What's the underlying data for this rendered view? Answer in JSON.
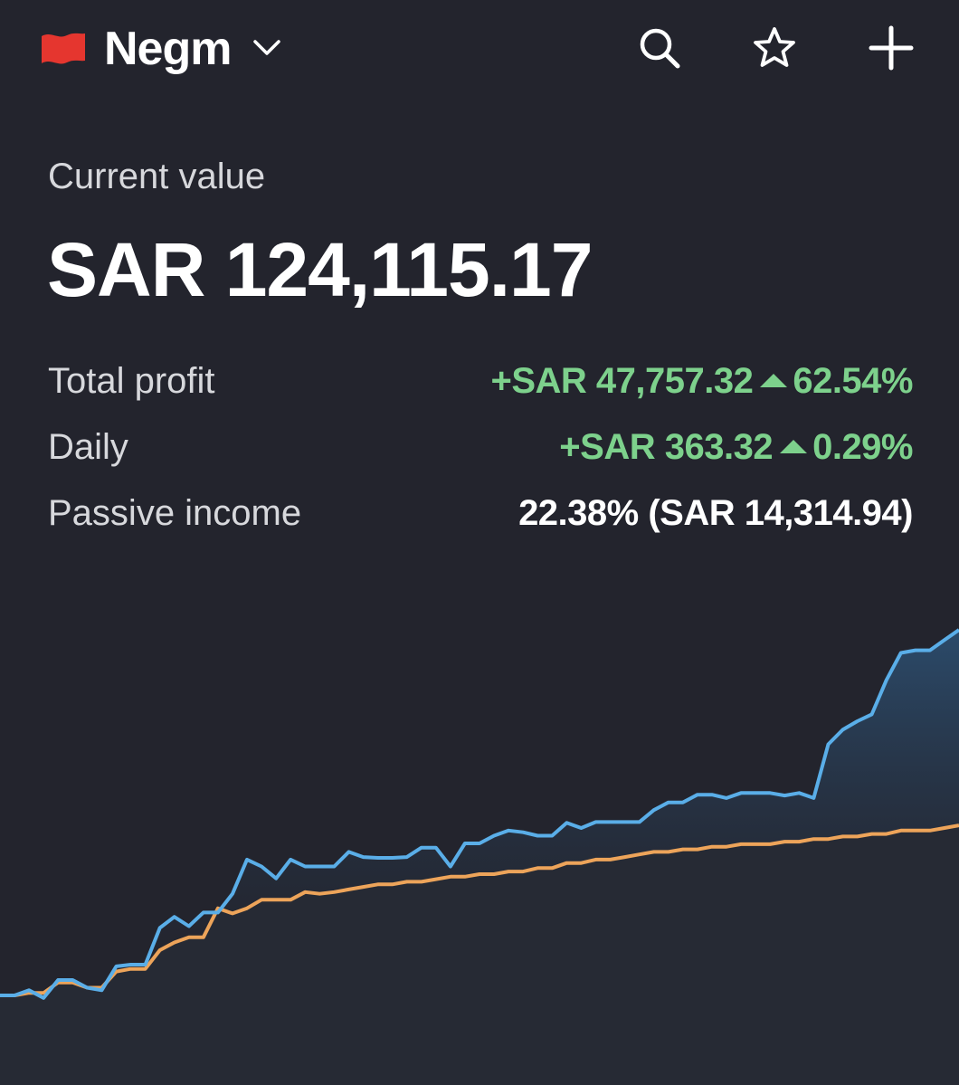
{
  "header": {
    "portfolio_name": "Negm",
    "flag_color": "#e5362f",
    "icons": [
      "flag-icon",
      "chevron-down-icon",
      "search-icon",
      "star-icon",
      "plus-icon"
    ]
  },
  "summary": {
    "current_value_label": "Current value",
    "current_value": "SAR 124,115.17",
    "total_profit_label": "Total profit",
    "total_profit_amount": "+SAR 47,757.32",
    "total_profit_percent": "62.54%",
    "daily_label": "Daily",
    "daily_amount": "+SAR 363.32",
    "daily_percent": "0.29%",
    "passive_income_label": "Passive income",
    "passive_income_value": "22.38% (SAR 14,314.94)"
  },
  "colors": {
    "background": "#23242d",
    "positive": "#7dd18c",
    "portfolio_line": "#5aaee8",
    "invested_line": "#eda45a",
    "area_fill": "#294058"
  },
  "chart_data": {
    "type": "line",
    "series": [
      {
        "values": [
          0,
          0,
          0.6,
          -0.3,
          1.8,
          1.8,
          0.9,
          0.6,
          3.4,
          3.6,
          3.6,
          7.9,
          9.2,
          8.1,
          9.7,
          9.7,
          11.9,
          15.9,
          15.1,
          13.7,
          15.9,
          15.1,
          15.1,
          15.1,
          16.8,
          16.2,
          16.1,
          16.1,
          16.2,
          17.3,
          17.3,
          15.1,
          17.8,
          17.8,
          18.7,
          19.3,
          19.1,
          18.7,
          18.7,
          20.2,
          19.6,
          20.3,
          20.3,
          20.3,
          20.3,
          21.7,
          22.6,
          22.6,
          23.5,
          23.5,
          23.1,
          23.7,
          23.7,
          23.7,
          23.4,
          23.7,
          23.1,
          29.4,
          31.1,
          32.1,
          32.9,
          36.9,
          40.1,
          40.4,
          40.4,
          41.6,
          42.8
        ]
      },
      {
        "values": [
          0,
          0,
          0.3,
          0.3,
          1.5,
          1.5,
          0.9,
          0.9,
          2.8,
          3.1,
          3.1,
          5.3,
          6.2,
          6.8,
          6.8,
          10.2,
          9.6,
          10.2,
          11.2,
          11.2,
          11.2,
          12.1,
          11.9,
          12.1,
          12.4,
          12.7,
          13.0,
          13.0,
          13.3,
          13.3,
          13.6,
          13.9,
          13.9,
          14.2,
          14.2,
          14.5,
          14.5,
          14.9,
          14.9,
          15.5,
          15.5,
          15.9,
          15.9,
          16.2,
          16.5,
          16.8,
          16.8,
          17.1,
          17.1,
          17.4,
          17.4,
          17.7,
          17.7,
          17.7,
          18.0,
          18.0,
          18.3,
          18.3,
          18.6,
          18.6,
          18.9,
          18.9,
          19.3,
          19.3,
          19.3,
          19.6,
          19.9
        ]
      }
    ],
    "xlabel": "",
    "ylabel": "",
    "grid": false,
    "legend": "none"
  }
}
